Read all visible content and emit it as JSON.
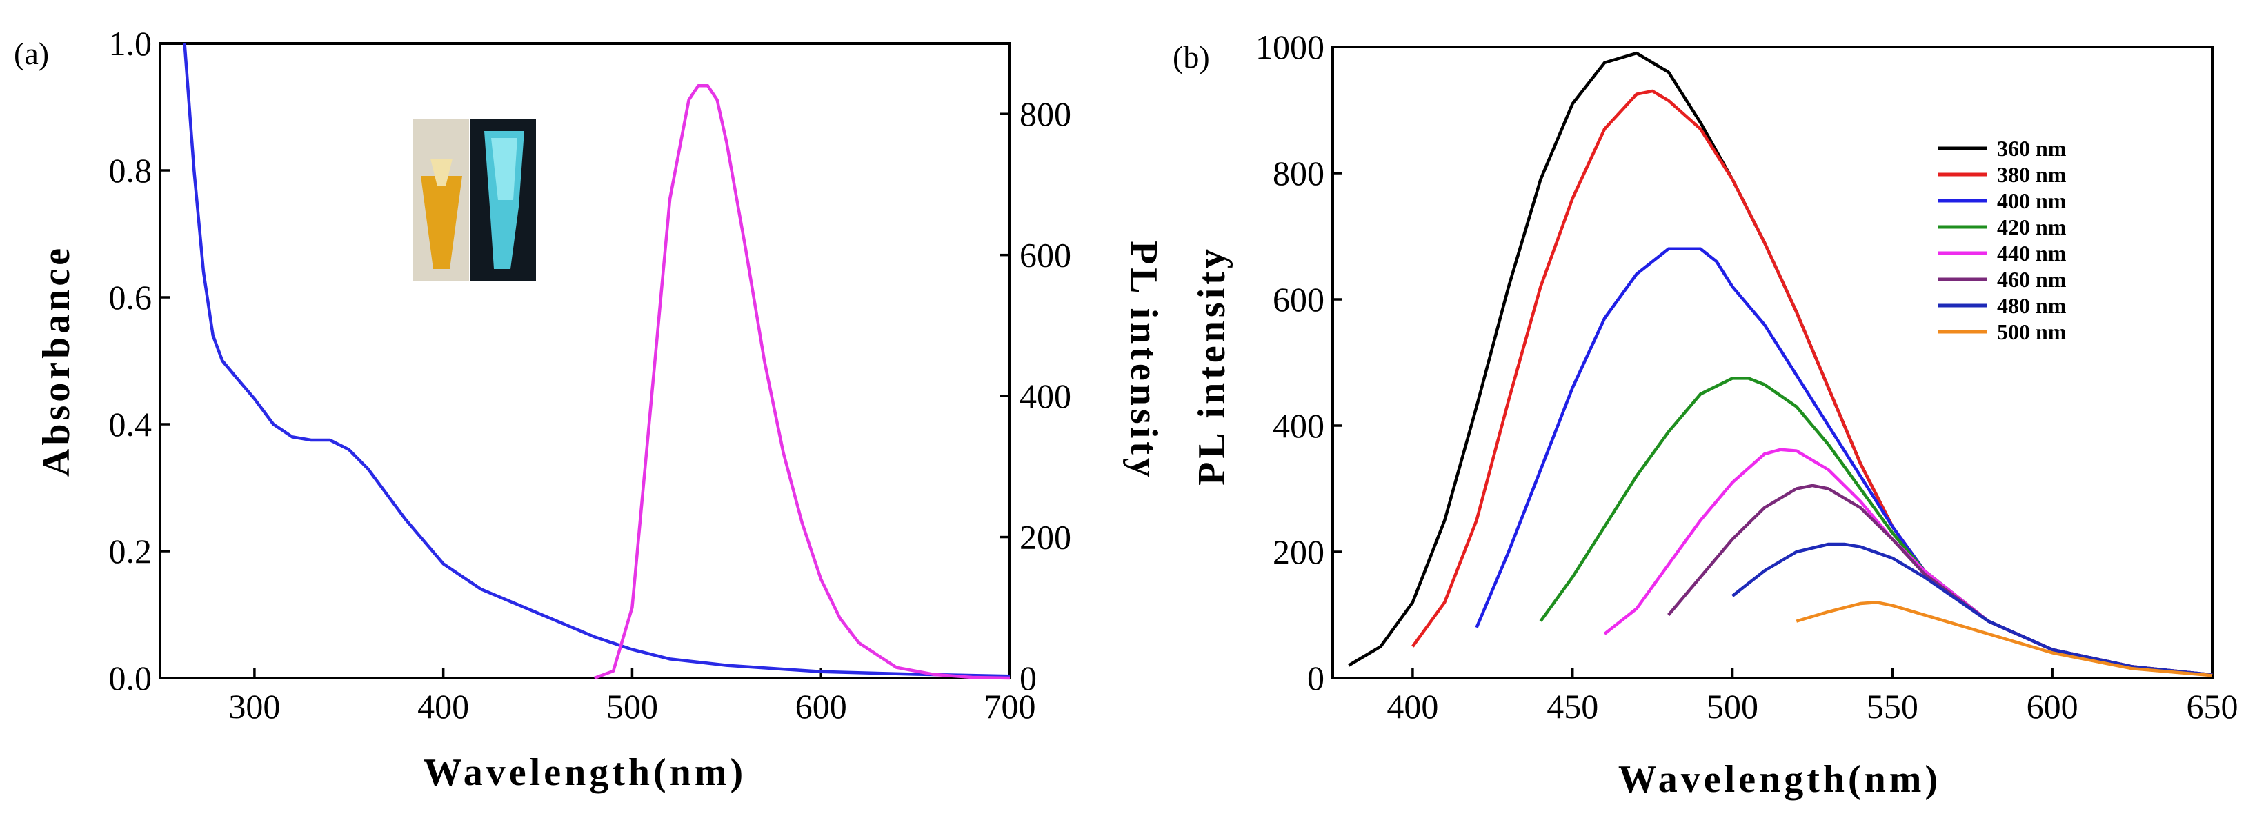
{
  "chart_data": [
    {
      "type": "line",
      "panel_label": "(a)",
      "xlabel": "Wavelength(nm)",
      "ylabel": "Absorbance",
      "y2label": "PL intensity",
      "xlim": [
        250,
        700
      ],
      "ylim": [
        0,
        1.0
      ],
      "y2lim": [
        0,
        900
      ],
      "xticks": [
        "300",
        "400",
        "500",
        "600",
        "700"
      ],
      "yticks": [
        "0.0",
        "0.2",
        "0.4",
        "0.6",
        "0.8",
        "1.0"
      ],
      "y2ticks": [
        "0",
        "200",
        "400",
        "600",
        "800"
      ],
      "inset": "photo of sample vials under daylight and UV light",
      "series": [
        {
          "name": "Absorbance",
          "axis": "left",
          "color": "#2a2ae6",
          "x": [
            263,
            268,
            273,
            278,
            283,
            290,
            300,
            310,
            320,
            330,
            340,
            350,
            360,
            370,
            380,
            390,
            400,
            420,
            440,
            460,
            480,
            500,
            520,
            550,
            600,
            650,
            700
          ],
          "y": [
            1.0,
            0.8,
            0.64,
            0.54,
            0.5,
            0.475,
            0.44,
            0.4,
            0.38,
            0.375,
            0.375,
            0.36,
            0.33,
            0.29,
            0.25,
            0.215,
            0.18,
            0.14,
            0.115,
            0.09,
            0.065,
            0.045,
            0.03,
            0.02,
            0.01,
            0.006,
            0.003
          ]
        },
        {
          "name": "PL intensity",
          "axis": "right",
          "color": "#e635e6",
          "x": [
            480,
            490,
            500,
            510,
            520,
            530,
            535,
            540,
            545,
            550,
            560,
            570,
            580,
            590,
            600,
            610,
            620,
            640,
            660,
            680,
            700
          ],
          "y": [
            0,
            10,
            100,
            390,
            680,
            820,
            840,
            840,
            820,
            760,
            610,
            450,
            320,
            220,
            140,
            85,
            50,
            15,
            5,
            1,
            0
          ]
        }
      ]
    },
    {
      "type": "line",
      "panel_label": "(b)",
      "xlabel": "Wavelength(nm)",
      "ylabel": "PL intensity",
      "xlim": [
        375,
        650
      ],
      "ylim": [
        0,
        1000
      ],
      "xticks": [
        "400",
        "450",
        "500",
        "550",
        "600",
        "650"
      ],
      "yticks": [
        "0",
        "200",
        "400",
        "600",
        "800",
        "1000"
      ],
      "legend_position": "right",
      "series": [
        {
          "name": "360 nm",
          "color": "#000000",
          "x": [
            380,
            390,
            400,
            410,
            420,
            430,
            440,
            450,
            460,
            470,
            480,
            490,
            500,
            510,
            520,
            530,
            540,
            550,
            560,
            580,
            600,
            625,
            650
          ],
          "y": [
            20,
            50,
            120,
            250,
            430,
            620,
            790,
            910,
            975,
            990,
            960,
            880,
            790,
            690,
            580,
            460,
            340,
            240,
            170,
            90,
            45,
            18,
            5
          ]
        },
        {
          "name": "380 nm",
          "color": "#e62020",
          "x": [
            400,
            410,
            420,
            430,
            440,
            450,
            460,
            470,
            475,
            480,
            490,
            500,
            510,
            520,
            530,
            540,
            550,
            560,
            580,
            600,
            625,
            650
          ],
          "y": [
            50,
            120,
            250,
            440,
            620,
            760,
            870,
            925,
            930,
            915,
            870,
            790,
            690,
            580,
            460,
            340,
            240,
            170,
            90,
            45,
            18,
            5
          ]
        },
        {
          "name": "400 nm",
          "color": "#2020e6",
          "x": [
            420,
            430,
            440,
            450,
            460,
            470,
            480,
            490,
            495,
            500,
            510,
            520,
            530,
            540,
            550,
            560,
            580,
            600,
            625,
            650
          ],
          "y": [
            80,
            200,
            330,
            460,
            570,
            640,
            680,
            680,
            660,
            620,
            560,
            480,
            400,
            320,
            240,
            170,
            90,
            45,
            18,
            5
          ]
        },
        {
          "name": "420 nm",
          "color": "#1f8f1f",
          "x": [
            440,
            450,
            460,
            470,
            480,
            490,
            500,
            505,
            510,
            520,
            530,
            540,
            550,
            560,
            580,
            600,
            625,
            650
          ],
          "y": [
            90,
            160,
            240,
            320,
            390,
            450,
            475,
            475,
            465,
            430,
            370,
            300,
            230,
            170,
            90,
            45,
            18,
            5
          ]
        },
        {
          "name": "440 nm",
          "color": "#ee2cee",
          "x": [
            460,
            470,
            480,
            490,
            500,
            510,
            515,
            520,
            530,
            540,
            550,
            560,
            580,
            600,
            625,
            650
          ],
          "y": [
            70,
            110,
            180,
            250,
            310,
            355,
            362,
            360,
            330,
            280,
            220,
            170,
            90,
            45,
            18,
            5
          ]
        },
        {
          "name": "460 nm",
          "color": "#7a2a7a",
          "x": [
            480,
            490,
            500,
            510,
            520,
            525,
            530,
            540,
            550,
            560,
            580,
            600,
            625,
            650
          ],
          "y": [
            100,
            160,
            220,
            270,
            300,
            305,
            300,
            270,
            220,
            165,
            90,
            45,
            18,
            5
          ]
        },
        {
          "name": "480 nm",
          "color": "#1e2ab8",
          "x": [
            500,
            510,
            520,
            530,
            535,
            540,
            550,
            560,
            580,
            600,
            625,
            650
          ],
          "y": [
            130,
            170,
            200,
            212,
            212,
            208,
            190,
            160,
            90,
            45,
            18,
            5
          ]
        },
        {
          "name": "500 nm",
          "color": "#f08a1e",
          "x": [
            520,
            530,
            540,
            545,
            550,
            560,
            580,
            600,
            625,
            650
          ],
          "y": [
            90,
            105,
            118,
            120,
            115,
            100,
            70,
            40,
            15,
            4
          ]
        }
      ]
    }
  ]
}
